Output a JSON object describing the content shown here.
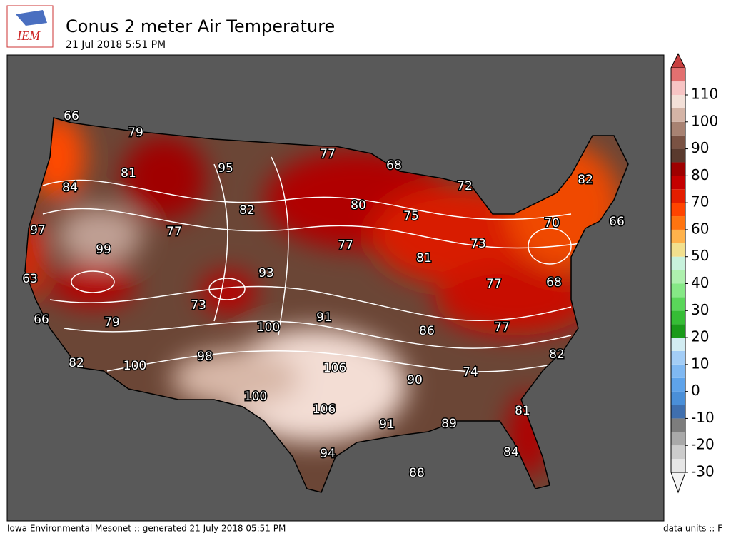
{
  "header": {
    "logo": "IEM",
    "title": "Conus 2 meter Air Temperature",
    "subtitle": "21 Jul 2018 5:51 PM"
  },
  "map": {
    "contour_labels": [
      66,
      79,
      81,
      84,
      95,
      77,
      68,
      72,
      82,
      66,
      70,
      80,
      75,
      82,
      77,
      97,
      99,
      77,
      81,
      73,
      63,
      93,
      68,
      77,
      73,
      91,
      100,
      86,
      77,
      66,
      79,
      82,
      82,
      100,
      98,
      106,
      74,
      90,
      100,
      106,
      81,
      91,
      89,
      94,
      84,
      88
    ]
  },
  "colorbar": {
    "ticks": [
      -30,
      -20,
      -10,
      0,
      10,
      20,
      30,
      40,
      50,
      60,
      70,
      80,
      90,
      100,
      110
    ],
    "colors": [
      "#e6e6e6",
      "#cccccc",
      "#a9a9a9",
      "#7d7d7d",
      "#3f6fae",
      "#4a8fd8",
      "#5ea3ea",
      "#7fb8f2",
      "#a3cdf6",
      "#d2ecf2",
      "#1a9a1a",
      "#36bd36",
      "#5ad65a",
      "#86e886",
      "#aef0ae",
      "#c8f2dc",
      "#f2e08e",
      "#ffb24c",
      "#ff7410",
      "#ff4400",
      "#e41e00",
      "#c40000",
      "#9e0000",
      "#5a3a2e",
      "#7a5243",
      "#a88272",
      "#d4b4a6",
      "#f3e0d8",
      "#f7c4c4",
      "#e27070"
    ],
    "min_color": "#f4f4f4",
    "max_color": "#c84040"
  },
  "footer": {
    "left": "Iowa Environmental Mesonet :: generated 21 July 2018 05:51 PM",
    "right": "data units :: F"
  }
}
